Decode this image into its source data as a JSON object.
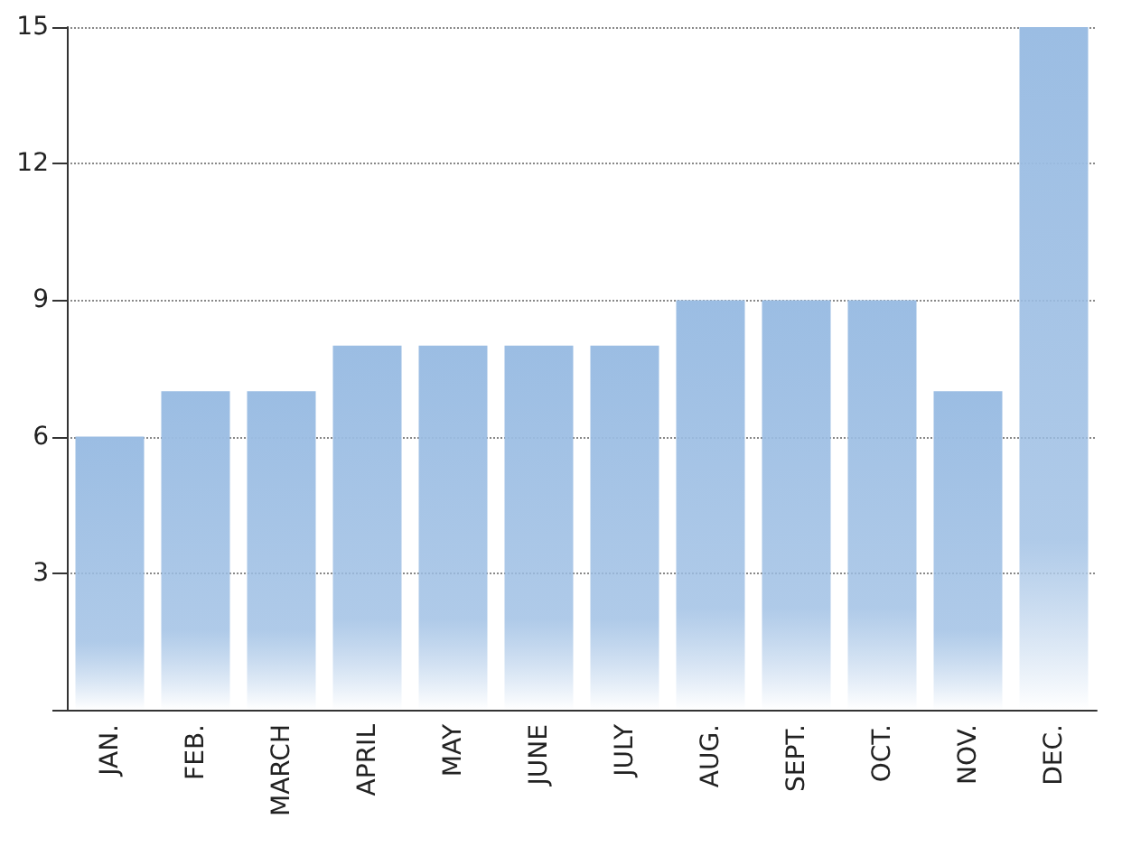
{
  "chart_data": {
    "type": "bar",
    "categories": [
      "JAN.",
      "FEB.",
      "MARCH",
      "APRIL",
      "MAY",
      "JUNE",
      "JULY",
      "AUG.",
      "SEPT.",
      "OCT.",
      "NOV.",
      "DEC."
    ],
    "values": [
      6,
      7,
      7,
      8,
      8,
      8,
      8,
      9,
      9,
      9,
      7,
      15
    ],
    "color": "#9bbde3",
    "ylim": [
      0,
      15
    ],
    "yticks": [
      {
        "value": 0,
        "label": null
      },
      3,
      6,
      9,
      12,
      15
    ],
    "grid": "y"
  }
}
